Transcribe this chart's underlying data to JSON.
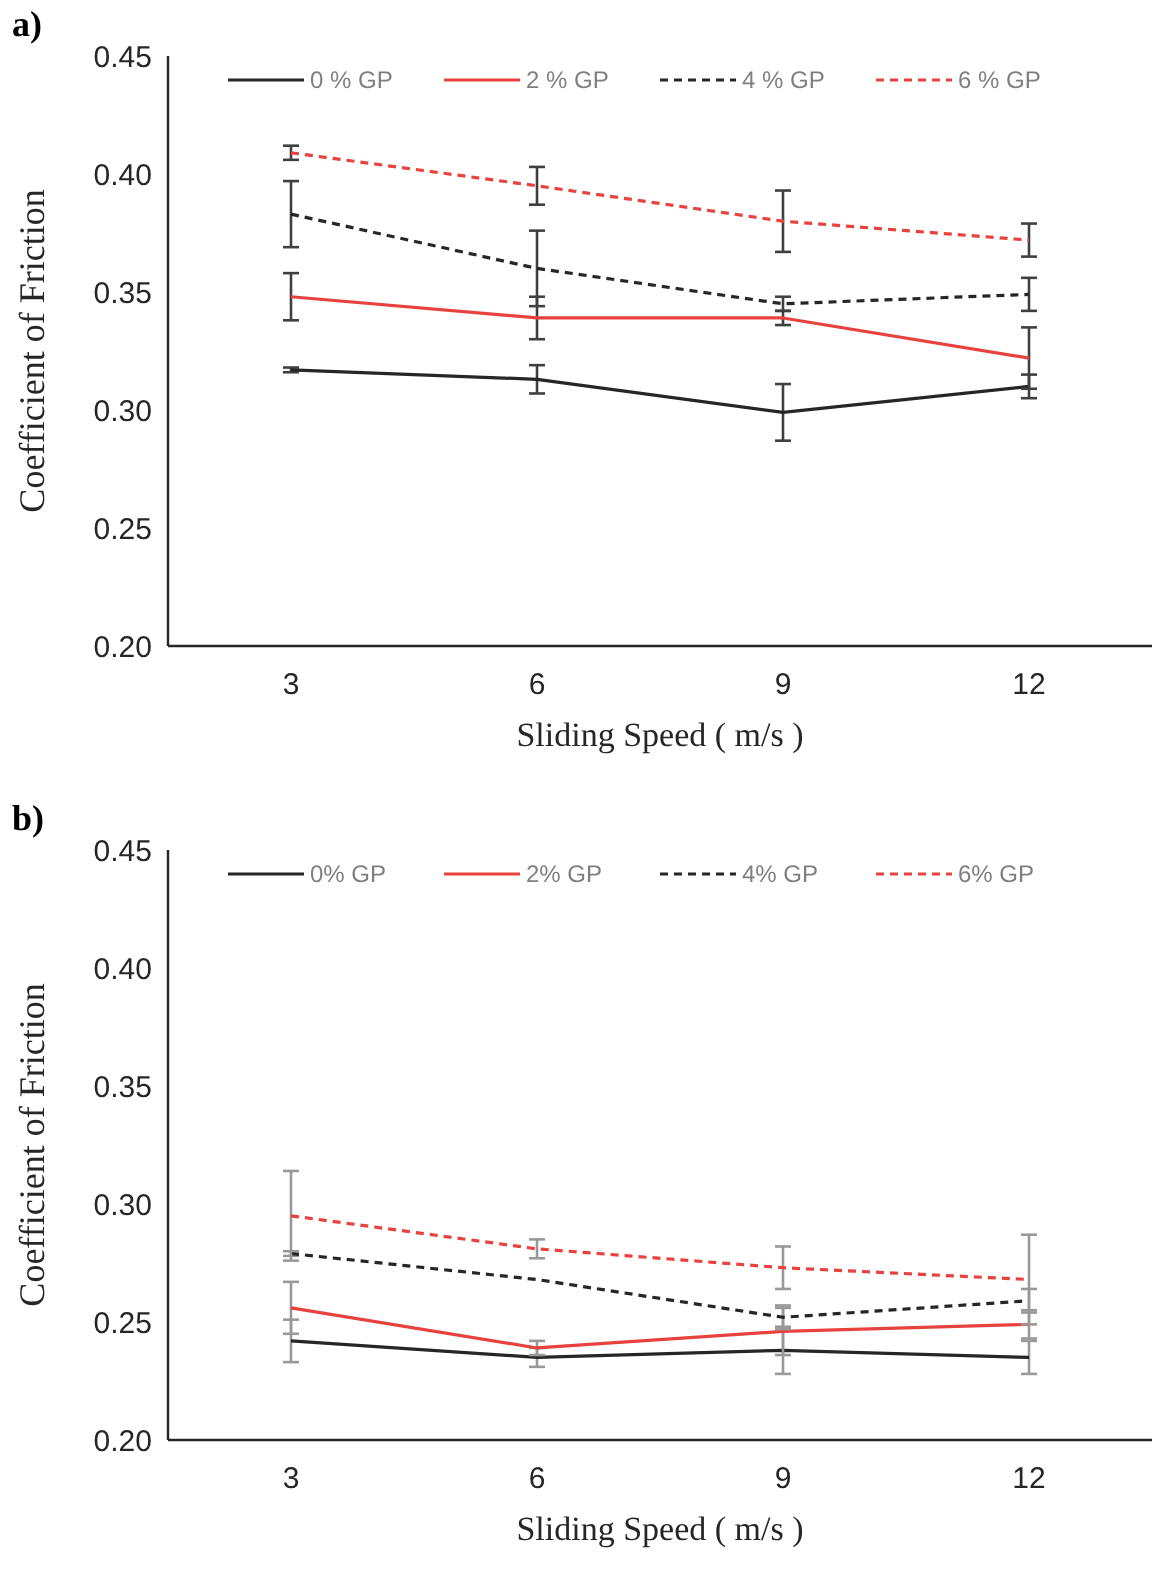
{
  "chart_data": [
    {
      "type": "line",
      "title": "a)",
      "xlabel": "Sliding Speed ( m/s )",
      "ylabel": "Coefficient of Friction",
      "categories": [
        "3",
        "6",
        "9",
        "12"
      ],
      "ylim": [
        0.2,
        0.45
      ],
      "yticks": [
        {
          "value": 0.2,
          "label": "0.20"
        },
        {
          "value": 0.25,
          "label": "0.25"
        },
        {
          "value": 0.3,
          "label": "0.30"
        },
        {
          "value": 0.35,
          "label": "0.35"
        },
        {
          "value": 0.4,
          "label": "0.40"
        },
        {
          "value": 0.45,
          "label": "0.45"
        }
      ],
      "grid": false,
      "legend": "top",
      "marker": "none",
      "series": [
        {
          "name": "0 % GP",
          "color": "#262626",
          "line_style": "solid",
          "values": [
            0.317,
            0.313,
            0.299,
            0.31
          ],
          "errors": [
            0.001,
            0.006,
            0.012,
            0.005
          ]
        },
        {
          "name": "2 % GP",
          "color": "#e8423f",
          "line_style": "solid",
          "values": [
            0.348,
            0.339,
            0.339,
            0.322
          ],
          "errors": [
            0.01,
            0.009,
            0.003,
            0.013
          ]
        },
        {
          "name": "4 % GP",
          "color": "#262626",
          "line_style": "dashed",
          "values": [
            0.383,
            0.36,
            0.345,
            0.349
          ],
          "errors": [
            0.014,
            0.016,
            0.003,
            0.007
          ]
        },
        {
          "name": "6 % GP",
          "color": "#e8423f",
          "line_style": "dashed",
          "values": [
            0.409,
            0.395,
            0.38,
            0.372
          ],
          "errors": [
            0.003,
            0.008,
            0.013,
            0.007
          ]
        }
      ]
    },
    {
      "type": "line",
      "title": "b)",
      "xlabel": "Sliding Speed ( m/s )",
      "ylabel": "Coefficient of Friction",
      "categories": [
        "3",
        "6",
        "9",
        "12"
      ],
      "ylim": [
        0.2,
        0.45
      ],
      "yticks": [
        {
          "value": 0.2,
          "label": "0.20"
        },
        {
          "value": 0.25,
          "label": "0.25"
        },
        {
          "value": 0.3,
          "label": "0.30"
        },
        {
          "value": 0.35,
          "label": "0.35"
        },
        {
          "value": 0.4,
          "label": "0.40"
        },
        {
          "value": 0.45,
          "label": "0.45"
        }
      ],
      "grid": false,
      "legend": "top",
      "marker": "none",
      "series": [
        {
          "name": "0% GP",
          "color": "#262626",
          "line_style": "solid",
          "values": [
            0.242,
            0.235,
            0.238,
            0.235
          ],
          "errors": [
            0.009,
            0.004,
            0.01,
            0.007
          ]
        },
        {
          "name": "2% GP",
          "color": "#e8423f",
          "line_style": "solid",
          "values": [
            0.256,
            0.239,
            0.246,
            0.249
          ],
          "errors": [
            0.011,
            0.003,
            0.01,
            0.006
          ]
        },
        {
          "name": "4% GP",
          "color": "#262626",
          "line_style": "dashed",
          "values": [
            0.279,
            0.268,
            0.252,
            0.259
          ],
          "errors": [
            0.001,
            null,
            0.005,
            0.005
          ]
        },
        {
          "name": "6% GP",
          "color": "#e8423f",
          "line_style": "dashed",
          "values": [
            0.295,
            0.281,
            0.273,
            0.268
          ],
          "errors": [
            0.019,
            0.004,
            0.009,
            0.019
          ]
        }
      ]
    }
  ]
}
